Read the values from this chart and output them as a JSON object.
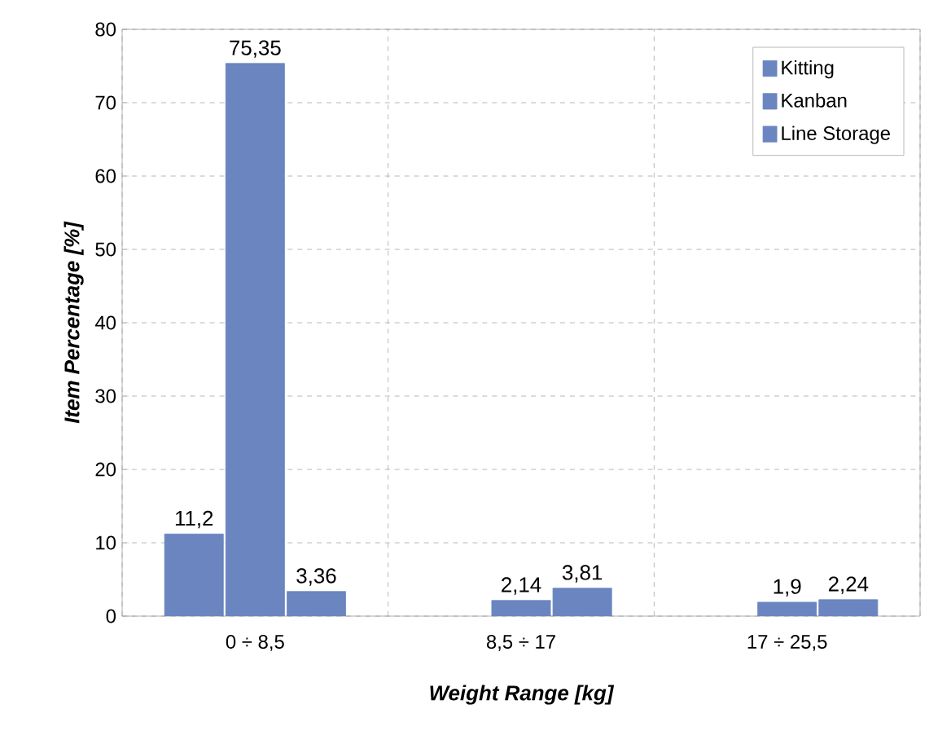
{
  "chart_data": {
    "type": "bar",
    "xlabel": "Weight Range [kg]",
    "ylabel": "Item Percentage  [%]",
    "categories": [
      "0 ÷ 8,5",
      "8,5 ÷ 17",
      "17 ÷ 25,5"
    ],
    "series": [
      {
        "name": "Kitting",
        "color": "#6a85c0",
        "values": [
          11.2,
          null,
          null
        ],
        "value_labels": [
          "11,2",
          null,
          null
        ]
      },
      {
        "name": "Kanban",
        "color": "#6a85c0",
        "values": [
          75.35,
          2.14,
          1.9
        ],
        "value_labels": [
          "75,35",
          "2,14",
          "1,9"
        ]
      },
      {
        "name": "Line Storage",
        "color": "#6a85c0",
        "values": [
          3.36,
          3.81,
          2.24
        ],
        "value_labels": [
          "3,36",
          "3,81",
          "2,24"
        ]
      }
    ],
    "ylim": [
      0,
      80
    ],
    "yticks": [
      0,
      10,
      20,
      30,
      40,
      50,
      60,
      70,
      80
    ],
    "grid": true,
    "legend": "top right"
  }
}
